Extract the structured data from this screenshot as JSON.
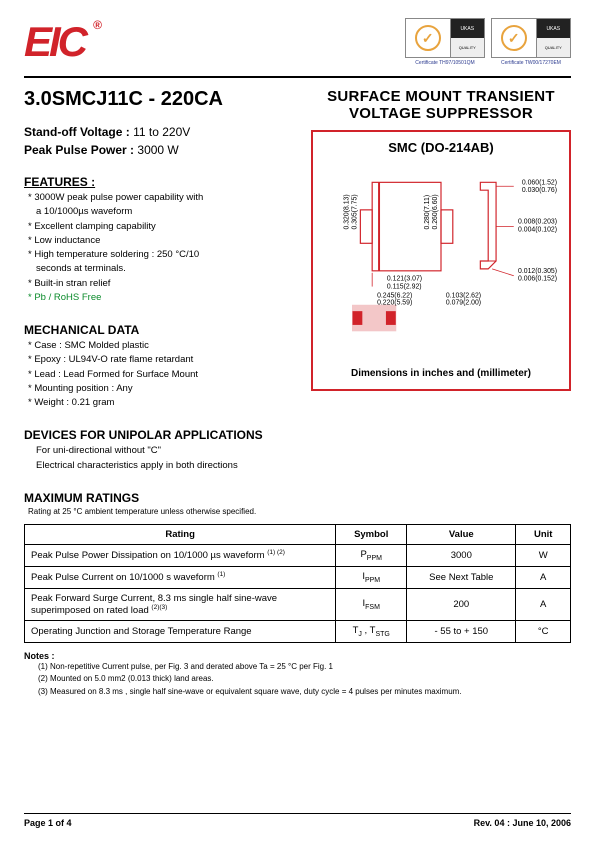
{
  "header": {
    "logo_text": "EIC",
    "cert_left": "Certificate  TH97/10501QM",
    "cert_right": "Certificate  TW00/17270EM",
    "sgs": "SGS",
    "ukas": "UKAS"
  },
  "left": {
    "part_number": "3.0SMCJ11C - 220CA",
    "standoff_label": "Stand-off Voltage :",
    "standoff_value": " 11 to 220V",
    "pppower_label": "Peak Pulse Power :",
    "pppower_value": " 3000 W",
    "features_h": "FEATURES :",
    "features": [
      "3000W peak pulse power capability with",
      "a 10/1000µs  waveform",
      "Excellent clamping capability",
      "Low inductance",
      "High temperature soldering : 250 °C/10",
      "seconds at terminals.",
      "Built-in stran relief",
      "Pb / RoHS Free"
    ],
    "mech_h": "MECHANICAL DATA",
    "mech": [
      "Case :  SMC Molded plastic",
      "Epoxy : UL94V-O rate flame retardant",
      "Lead : Lead Formed for Surface Mount",
      "Mounting  position : Any",
      "Weight : 0.21 gram"
    ],
    "devices_h": "DEVICES FOR UNIPOLAR APPLICATIONS",
    "devices_lines": [
      "For uni-directional without \"C\"",
      "Electrical characteristics apply in both directions"
    ],
    "max_h": "MAXIMUM RATINGS",
    "max_note": "Rating at 25 °C ambient temperature unless otherwise specified."
  },
  "right": {
    "title_l1": "SURFACE MOUNT TRANSIENT",
    "title_l2": "VOLTAGE SUPPRESSOR",
    "pkg_title": "SMC (DO-214AB)",
    "caption": "Dimensions in inches and  (millimeter)",
    "dims": {
      "d1a": "0.060(1.52)",
      "d1b": "0.030(0.76)",
      "d2a": "0.008(0.203)",
      "d2b": "0.004(0.102)",
      "d3a": "0.012(0.305)",
      "d3b": "0.006(0.152)",
      "d4a": "0.103(2.62)",
      "d4b": "0.079(2.00)",
      "d5a": "0.245(6.22)",
      "d5b": "0.220(5.59)",
      "d6a": "0.121(3.07)",
      "d6b": "0.115(2.92)",
      "d7a": "0.320(8.13)",
      "d7b": "0.305(7.75)",
      "d8a": "0.280(7.11)",
      "d8b": "0.260(6.60)"
    }
  },
  "table": {
    "headers": [
      "Rating",
      "Symbol",
      "Value",
      "Unit"
    ],
    "rows": [
      {
        "rating": "Peak Pulse Power Dissipation on 10/1000 µs waveform",
        "refs": "(1) (2)",
        "symbol": "P",
        "sub": "PPM",
        "value": "3000",
        "unit": "W"
      },
      {
        "rating": "Peak Pulse Current on 10/1000 s waveform",
        "refs": "(1)",
        "symbol": "I",
        "sub": "PPM",
        "value": "See Next Table",
        "unit": "A"
      },
      {
        "rating": "Peak Forward Surge Current, 8.3 ms single half sine-wave superimposed on rated load",
        "refs": "(2)(3)",
        "symbol": "I",
        "sub": "FSM",
        "value": "200",
        "unit": "A"
      },
      {
        "rating": "Operating Junction and Storage Temperature Range",
        "refs": "",
        "symbol": "T",
        "sub": "J , STG",
        "value": "- 55 to + 150",
        "unit": "°C"
      }
    ]
  },
  "notes": {
    "h": "Notes :",
    "items": [
      "(1) Non-repetitive Current pulse, per Fig. 3 and derated above Ta = 25 °C per Fig. 1",
      "(2) Mounted on 5.0 mm2 (0.013 thick) land areas.",
      "(3) Measured on 8.3 ms , single half sine-wave or equivalent square wave, duty cycle = 4 pulses per minutes maximum."
    ]
  },
  "footer": {
    "page": "Page 1 of 4",
    "rev": "Rev. 04 : June 10, 2006"
  },
  "colors": {
    "brand_red": "#d1232a",
    "green": "#0a8a2a"
  }
}
